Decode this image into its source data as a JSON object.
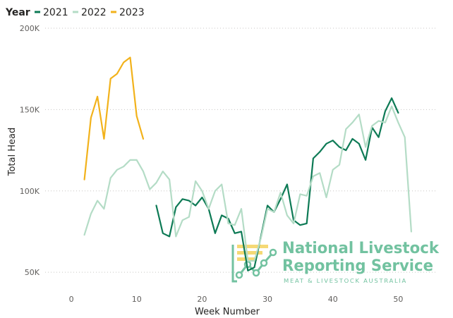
{
  "chart_data": {
    "type": "line",
    "title": "",
    "xlabel": "Week Number",
    "ylabel": "Total Head",
    "xlim": [
      -4,
      56
    ],
    "ylim": [
      44000,
      200000
    ],
    "x_ticks": [
      0,
      10,
      20,
      30,
      40,
      50
    ],
    "y_ticks": [
      50000,
      100000,
      150000,
      200000
    ],
    "y_tick_labels": [
      "50K",
      "100K",
      "150K",
      "200K"
    ],
    "legend_title": "Year",
    "legend_position": "top-left",
    "grid": "horizontal-dotted",
    "series": [
      {
        "name": "2021",
        "color": "#0d7a55",
        "points": [
          [
            13,
            91000
          ],
          [
            14,
            74000
          ],
          [
            15,
            72000
          ],
          [
            16,
            90000
          ],
          [
            17,
            95000
          ],
          [
            18,
            94000
          ],
          [
            19,
            91000
          ],
          [
            20,
            96000
          ],
          [
            21,
            89000
          ],
          [
            22,
            74000
          ],
          [
            23,
            85000
          ],
          [
            24,
            83000
          ],
          [
            25,
            74000
          ],
          [
            26,
            75000
          ],
          [
            27,
            51000
          ],
          [
            28,
            53000
          ],
          [
            29,
            72000
          ],
          [
            30,
            91000
          ],
          [
            31,
            87000
          ],
          [
            32,
            95000
          ],
          [
            33,
            104000
          ],
          [
            34,
            82000
          ],
          [
            35,
            79000
          ],
          [
            36,
            80000
          ],
          [
            37,
            120000
          ],
          [
            38,
            124000
          ],
          [
            39,
            129000
          ],
          [
            40,
            131000
          ],
          [
            41,
            127000
          ],
          [
            42,
            125000
          ],
          [
            43,
            132000
          ],
          [
            44,
            129000
          ],
          [
            45,
            119000
          ],
          [
            46,
            139000
          ],
          [
            47,
            133000
          ],
          [
            48,
            149000
          ],
          [
            49,
            157000
          ],
          [
            50,
            148000
          ]
        ]
      },
      {
        "name": "2022",
        "color": "#b4dcc6",
        "points": [
          [
            2,
            73000
          ],
          [
            3,
            86000
          ],
          [
            4,
            94000
          ],
          [
            5,
            89000
          ],
          [
            6,
            108000
          ],
          [
            7,
            113000
          ],
          [
            8,
            115000
          ],
          [
            9,
            119000
          ],
          [
            10,
            119000
          ],
          [
            11,
            112000
          ],
          [
            12,
            101000
          ],
          [
            13,
            105000
          ],
          [
            14,
            112000
          ],
          [
            15,
            107000
          ],
          [
            16,
            72000
          ],
          [
            17,
            82000
          ],
          [
            18,
            84000
          ],
          [
            19,
            106000
          ],
          [
            20,
            100000
          ],
          [
            21,
            89000
          ],
          [
            22,
            100000
          ],
          [
            23,
            104000
          ],
          [
            24,
            80000
          ],
          [
            25,
            79000
          ],
          [
            26,
            89000
          ],
          [
            27,
            57000
          ],
          [
            28,
            57000
          ],
          [
            29,
            71000
          ],
          [
            30,
            89000
          ],
          [
            31,
            87000
          ],
          [
            32,
            99000
          ],
          [
            33,
            85000
          ],
          [
            34,
            80000
          ],
          [
            35,
            98000
          ],
          [
            36,
            97000
          ],
          [
            37,
            109000
          ],
          [
            38,
            111000
          ],
          [
            39,
            96000
          ],
          [
            40,
            113000
          ],
          [
            41,
            116000
          ],
          [
            42,
            138000
          ],
          [
            43,
            142000
          ],
          [
            44,
            147000
          ],
          [
            45,
            127000
          ],
          [
            46,
            140000
          ],
          [
            47,
            143000
          ],
          [
            48,
            142000
          ],
          [
            49,
            152000
          ],
          [
            50,
            142000
          ],
          [
            51,
            133000
          ],
          [
            52,
            75000
          ]
        ]
      },
      {
        "name": "2023",
        "color": "#f2b21b",
        "points": [
          [
            2,
            107000
          ],
          [
            3,
            145000
          ],
          [
            4,
            158000
          ],
          [
            5,
            132000
          ],
          [
            6,
            169000
          ],
          [
            7,
            172000
          ],
          [
            8,
            179000
          ],
          [
            9,
            182000
          ],
          [
            10,
            146000
          ],
          [
            11,
            132000
          ]
        ]
      }
    ]
  },
  "watermark": {
    "line1": "National Livestock",
    "line2": "Reporting Service",
    "line3": "MEAT & LIVESTOCK AUSTRALIA",
    "color": "#6bbf9b",
    "accent_color": "#f5d76e"
  }
}
